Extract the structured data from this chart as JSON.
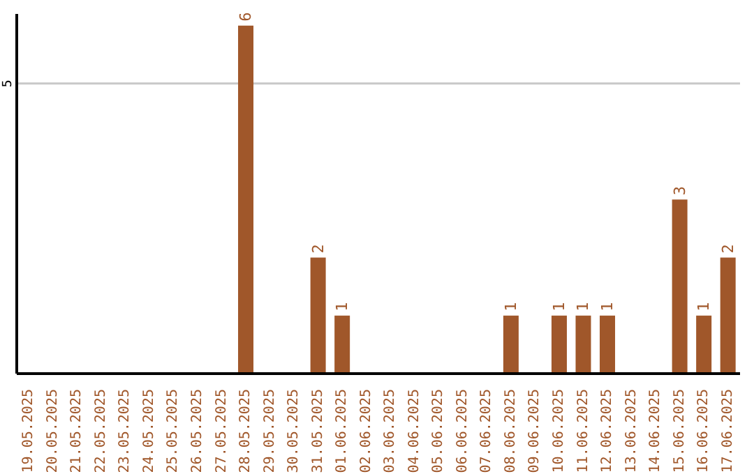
{
  "chart_data": {
    "type": "bar",
    "categories": [
      "19.05.2025",
      "20.05.2025",
      "21.05.2025",
      "22.05.2025",
      "23.05.2025",
      "24.05.2025",
      "25.05.2025",
      "26.05.2025",
      "27.05.2025",
      "28.05.2025",
      "29.05.2025",
      "30.05.2025",
      "31.05.2025",
      "01.06.2025",
      "02.06.2025",
      "03.06.2025",
      "04.06.2025",
      "05.06.2025",
      "06.06.2025",
      "07.06.2025",
      "08.06.2025",
      "09.06.2025",
      "10.06.2025",
      "11.06.2025",
      "12.06.2025",
      "13.06.2025",
      "14.06.2025",
      "15.06.2025",
      "16.06.2025",
      "17.06.2025"
    ],
    "values": [
      0,
      0,
      0,
      0,
      0,
      0,
      0,
      0,
      0,
      6,
      0,
      0,
      2,
      1,
      0,
      0,
      0,
      0,
      0,
      0,
      1,
      0,
      1,
      1,
      1,
      0,
      0,
      3,
      1,
      2
    ],
    "value_labels": [
      null,
      null,
      null,
      null,
      null,
      null,
      null,
      null,
      null,
      "6",
      null,
      null,
      "2",
      "1",
      null,
      null,
      null,
      null,
      null,
      null,
      "1",
      null,
      "1",
      "1",
      "1",
      null,
      null,
      "3",
      "1",
      "2"
    ],
    "color": "#a0572a",
    "ylim": [
      0,
      6.2
    ],
    "yticks": [
      5
    ],
    "grid": "y"
  }
}
